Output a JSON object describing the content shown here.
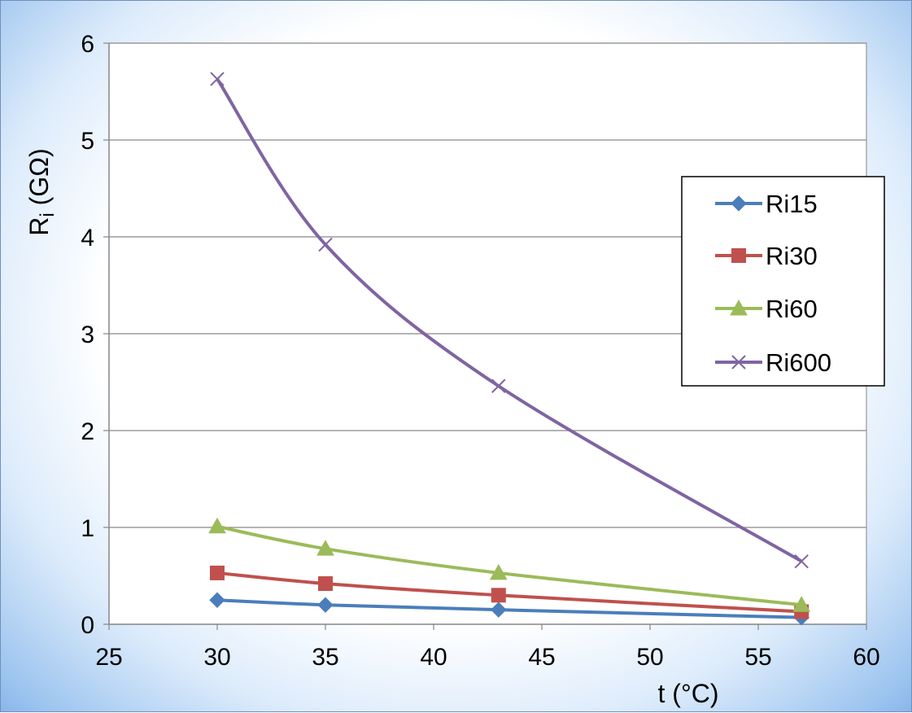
{
  "chart_data": {
    "type": "line",
    "title": "",
    "xlabel": "t (°C)",
    "ylabel_main": "R",
    "ylabel_sub": "i",
    "ylabel_rest": " (GΩ)",
    "xlim": [
      25,
      60
    ],
    "ylim": [
      0,
      6
    ],
    "xticks": [
      25,
      30,
      35,
      40,
      45,
      50,
      55,
      60
    ],
    "yticks": [
      0,
      1,
      2,
      3,
      4,
      5,
      6
    ],
    "grid": "horizontal",
    "legend_position": "right",
    "x": [
      30,
      35,
      43,
      57
    ],
    "series": [
      {
        "name": "Ri15",
        "values": [
          0.25,
          0.2,
          0.15,
          0.07
        ],
        "color": "#4a7ebb",
        "marker": "diamond"
      },
      {
        "name": "Ri30",
        "values": [
          0.53,
          0.42,
          0.3,
          0.13
        ],
        "color": "#c0504d",
        "marker": "square"
      },
      {
        "name": "Ri60",
        "values": [
          1.01,
          0.78,
          0.53,
          0.2
        ],
        "color": "#9bbb59",
        "marker": "triangle"
      },
      {
        "name": "Ri600",
        "values": [
          5.63,
          3.92,
          2.46,
          0.65
        ],
        "color": "#8064a2",
        "marker": "cross"
      }
    ]
  }
}
